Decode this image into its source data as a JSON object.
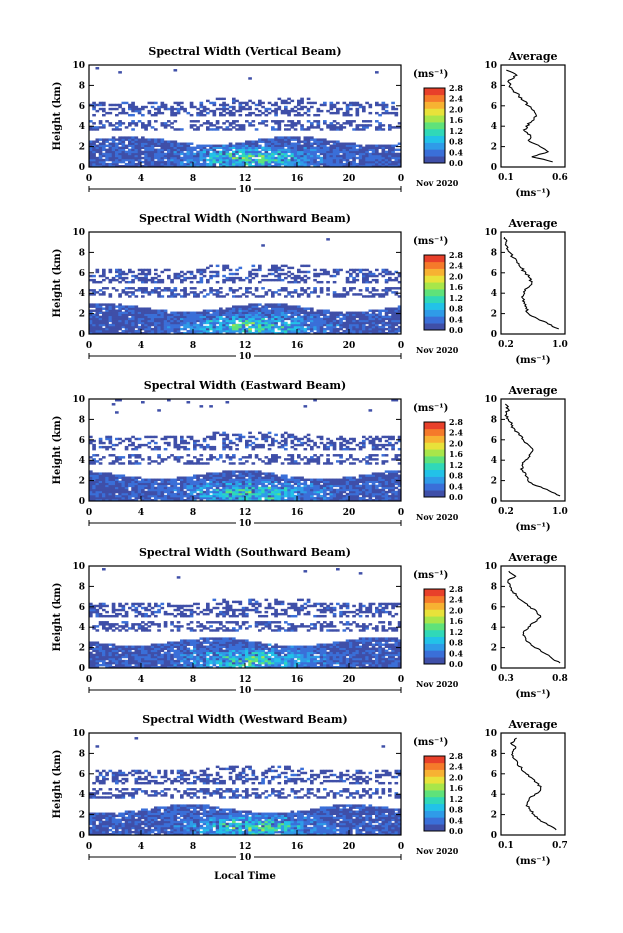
{
  "colors": {
    "colormap": [
      "#3f4fa8",
      "#3a6fd8",
      "#2f9be8",
      "#22c2e8",
      "#30d8b8",
      "#5fe27a",
      "#a8e64a",
      "#e8e23a",
      "#f7b232",
      "#f57a2a",
      "#e8402a"
    ],
    "background": "#ffffff",
    "axes": "#000000"
  },
  "colorbar": {
    "ticks": [
      "0.0",
      "0.4",
      "0.8",
      "1.2",
      "1.6",
      "2.0",
      "2.4",
      "2.8"
    ]
  },
  "footer": {
    "xlabel": "Local Time"
  },
  "chart_data": [
    {
      "type": "heatmap",
      "title": "Spectral Width (Vertical Beam)",
      "ylabel": "Height (km)",
      "ylim": [
        0,
        10
      ],
      "yticks": [
        "0",
        "2",
        "4",
        "6",
        "8",
        "10"
      ],
      "xlim": [
        0,
        24
      ],
      "xticks": [
        "0",
        "4",
        "8",
        "12",
        "16",
        "20",
        "0"
      ],
      "day_label": "10",
      "month_label": "Nov 2020",
      "unit_label": "(ms⁻¹)",
      "profile": {
        "title": "Average",
        "xlabel": "(ms⁻¹)",
        "xticks": [
          "0.1",
          "0.6"
        ],
        "xlim": [
          0.1,
          0.6
        ],
        "heights": [
          0.5,
          1,
          1.5,
          2,
          2.5,
          3,
          3.5,
          4,
          4.5,
          5,
          5.5,
          6,
          6.5,
          7,
          7.5,
          8,
          8.5,
          9,
          9.5
        ],
        "values": [
          0.52,
          0.34,
          0.48,
          0.41,
          0.32,
          0.33,
          0.28,
          0.29,
          0.34,
          0.38,
          0.36,
          0.31,
          0.27,
          0.23,
          0.18,
          0.15,
          0.14,
          0.21,
          0.12
        ]
      }
    },
    {
      "type": "heatmap",
      "title": "Spectral Width (Northward Beam)",
      "ylabel": "Height (km)",
      "ylim": [
        0,
        10
      ],
      "yticks": [
        "0",
        "2",
        "4",
        "6",
        "8",
        "10"
      ],
      "xlim": [
        0,
        24
      ],
      "xticks": [
        "0",
        "4",
        "8",
        "12",
        "16",
        "20",
        "0"
      ],
      "day_label": "10",
      "month_label": "Nov 2020",
      "unit_label": "(ms⁻¹)",
      "profile": {
        "title": "Average",
        "xlabel": "(ms⁻¹)",
        "xticks": [
          "0.2",
          "1.0"
        ],
        "xlim": [
          0.1,
          1.0
        ],
        "heights": [
          0.5,
          1,
          1.5,
          2,
          2.5,
          3,
          3.5,
          4,
          4.5,
          5,
          5.5,
          6,
          6.5,
          7,
          7.5,
          8,
          8.5,
          9,
          9.5
        ],
        "values": [
          0.95,
          0.78,
          0.62,
          0.48,
          0.44,
          0.41,
          0.39,
          0.42,
          0.46,
          0.53,
          0.5,
          0.44,
          0.36,
          0.3,
          0.24,
          0.19,
          0.16,
          0.13,
          0.11
        ]
      }
    },
    {
      "type": "heatmap",
      "title": "Spectral Width (Eastward Beam)",
      "ylabel": "Height (km)",
      "ylim": [
        0,
        10
      ],
      "yticks": [
        "0",
        "2",
        "4",
        "6",
        "8",
        "10"
      ],
      "xlim": [
        0,
        24
      ],
      "xticks": [
        "0",
        "4",
        "8",
        "12",
        "16",
        "20",
        "0"
      ],
      "day_label": "10",
      "month_label": "Nov 2020",
      "unit_label": "(ms⁻¹)",
      "profile": {
        "title": "Average",
        "xlabel": "(ms⁻¹)",
        "xticks": [
          "0.2",
          "1.0"
        ],
        "xlim": [
          0.1,
          1.0
        ],
        "heights": [
          0.5,
          1,
          1.5,
          2,
          2.5,
          3,
          3.5,
          4,
          4.5,
          5,
          5.5,
          6,
          6.5,
          7,
          7.5,
          8,
          8.5,
          9,
          9.5
        ],
        "values": [
          0.97,
          0.8,
          0.6,
          0.47,
          0.43,
          0.39,
          0.38,
          0.43,
          0.49,
          0.55,
          0.48,
          0.4,
          0.33,
          0.27,
          0.21,
          0.17,
          0.14,
          0.17,
          0.12
        ]
      }
    },
    {
      "type": "heatmap",
      "title": "Spectral Width (Southward Beam)",
      "ylabel": "Height (km)",
      "ylim": [
        0,
        10
      ],
      "yticks": [
        "0",
        "2",
        "4",
        "6",
        "8",
        "10"
      ],
      "xlim": [
        0,
        24
      ],
      "xticks": [
        "0",
        "4",
        "8",
        "12",
        "16",
        "20",
        "0"
      ],
      "day_label": "10",
      "month_label": "Nov 2020",
      "unit_label": "(ms⁻¹)",
      "profile": {
        "title": "Average",
        "xlabel": "(ms⁻¹)",
        "xticks": [
          "0.3",
          "0.8"
        ],
        "xlim": [
          0.2,
          0.8
        ],
        "heights": [
          0.5,
          1,
          1.5,
          2,
          2.5,
          3,
          3.5,
          4,
          4.5,
          5,
          5.5,
          6,
          6.5,
          7,
          7.5,
          8,
          8.5,
          9,
          9.5
        ],
        "values": [
          0.78,
          0.69,
          0.61,
          0.52,
          0.46,
          0.42,
          0.4,
          0.45,
          0.52,
          0.58,
          0.54,
          0.47,
          0.4,
          0.34,
          0.29,
          0.26,
          0.24,
          0.32,
          0.25
        ]
      }
    },
    {
      "type": "heatmap",
      "title": "Spectral Width (Westward Beam)",
      "ylabel": "Height (km)",
      "ylim": [
        0,
        10
      ],
      "yticks": [
        "0",
        "2",
        "4",
        "6",
        "8",
        "10"
      ],
      "xlim": [
        0,
        24
      ],
      "xticks": [
        "0",
        "4",
        "8",
        "12",
        "16",
        "20",
        "0"
      ],
      "day_label": "10",
      "month_label": "Nov 2020",
      "unit_label": "(ms⁻¹)",
      "profile": {
        "title": "Average",
        "xlabel": "(ms⁻¹)",
        "xticks": [
          "0.1",
          "0.7"
        ],
        "xlim": [
          0.1,
          0.7
        ],
        "heights": [
          0.5,
          1,
          1.5,
          2,
          2.5,
          3,
          3.5,
          4,
          4.5,
          5,
          5.5,
          6,
          6.5,
          7,
          7.5,
          8,
          8.5,
          9,
          9.5
        ],
        "values": [
          0.64,
          0.55,
          0.47,
          0.41,
          0.37,
          0.34,
          0.36,
          0.42,
          0.48,
          0.46,
          0.4,
          0.33,
          0.28,
          0.24,
          0.2,
          0.19,
          0.22,
          0.17,
          0.23
        ]
      }
    }
  ]
}
